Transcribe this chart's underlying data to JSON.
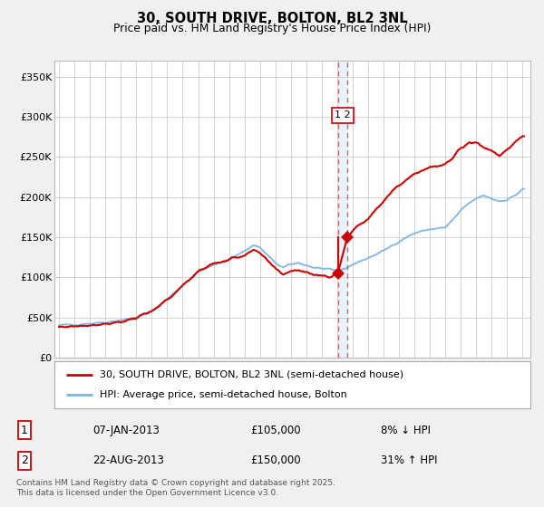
{
  "title1": "30, SOUTH DRIVE, BOLTON, BL2 3NL",
  "title2": "Price paid vs. HM Land Registry's House Price Index (HPI)",
  "legend_line1": "30, SOUTH DRIVE, BOLTON, BL2 3NL (semi-detached house)",
  "legend_line2": "HPI: Average price, semi-detached house, Bolton",
  "footer": "Contains HM Land Registry data © Crown copyright and database right 2025.\nThis data is licensed under the Open Government Licence v3.0.",
  "transaction1_date": "07-JAN-2013",
  "transaction1_price": "£105,000",
  "transaction1_note": "8% ↓ HPI",
  "transaction2_date": "22-AUG-2013",
  "transaction2_price": "£150,000",
  "transaction2_note": "31% ↑ HPI",
  "transaction1_x": 2013.04,
  "transaction1_y": 105000,
  "transaction2_x": 2013.64,
  "transaction2_y": 150000,
  "vline_x1": 2013.04,
  "vline_x2": 2013.64,
  "hpi_color": "#7eb6e8",
  "price_color": "#cc0000",
  "vline_color": "#e06060",
  "vline_highlight": "#ddeeff",
  "background_color": "#f0f0f0",
  "plot_bg_color": "#ffffff",
  "grid_color": "#cccccc",
  "ylim": [
    0,
    370000
  ],
  "xlim_start": 1994.7,
  "xlim_end": 2025.5,
  "yticks": [
    0,
    50000,
    100000,
    150000,
    200000,
    250000,
    300000,
    350000
  ],
  "ytick_labels": [
    "£0",
    "£50K",
    "£100K",
    "£150K",
    "£200K",
    "£250K",
    "£300K",
    "£350K"
  ],
  "xticks": [
    1995,
    1996,
    1997,
    1998,
    1999,
    2000,
    2001,
    2002,
    2003,
    2004,
    2005,
    2006,
    2007,
    2008,
    2009,
    2010,
    2011,
    2012,
    2013,
    2014,
    2015,
    2016,
    2017,
    2018,
    2019,
    2020,
    2021,
    2022,
    2023,
    2024,
    2025
  ]
}
